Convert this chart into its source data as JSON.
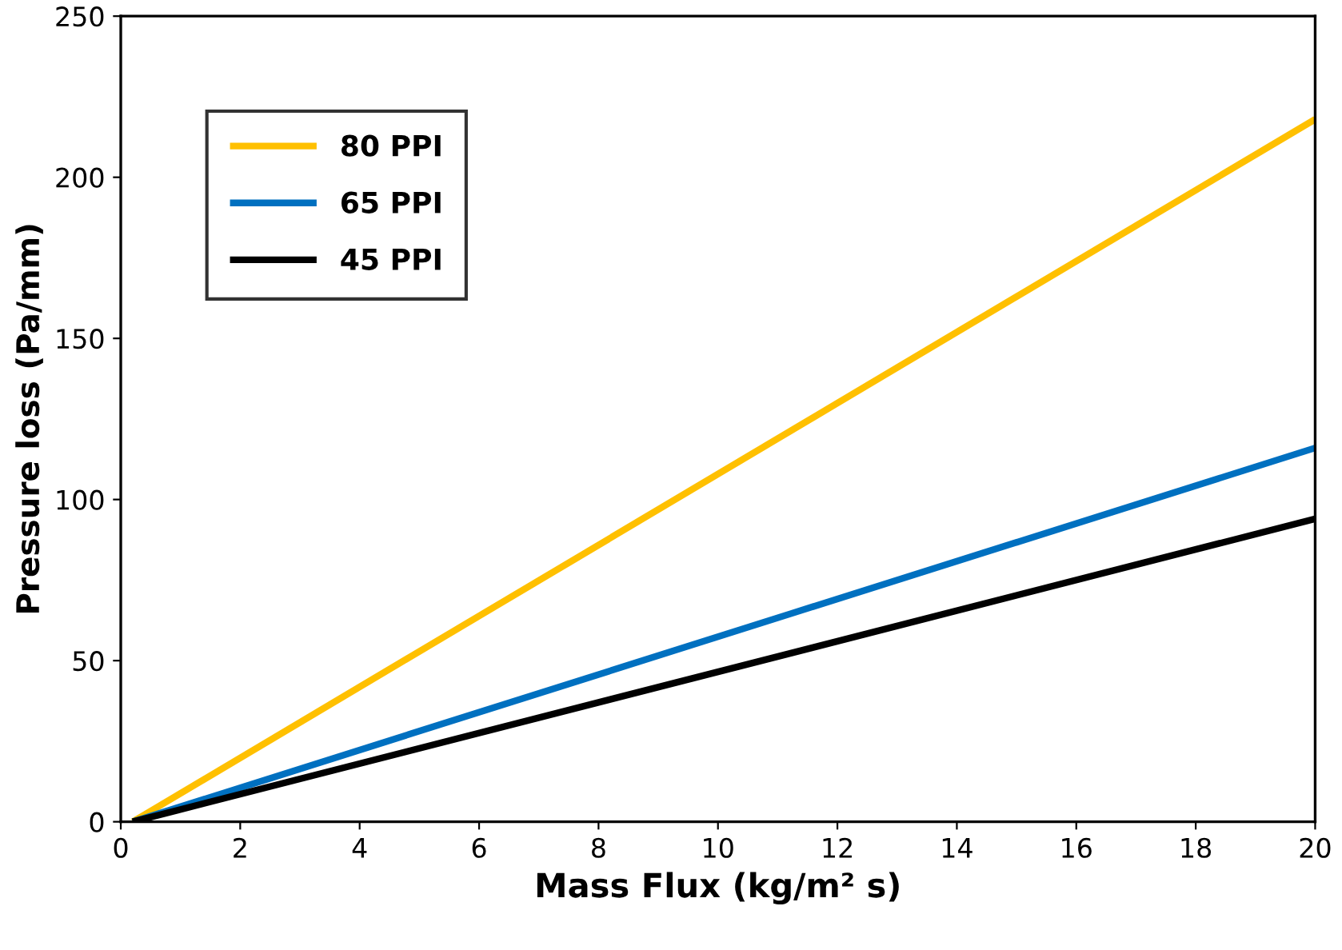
{
  "chart_data": {
    "type": "line",
    "xlabel": "Mass Flux (kg/m² s)",
    "ylabel": "Pressure loss (Pa/mm)",
    "xlim": [
      0,
      20
    ],
    "xticks": [
      0,
      2,
      4,
      6,
      8,
      10,
      12,
      14,
      16,
      18,
      20
    ],
    "ylim": [
      0,
      250
    ],
    "yticks": [
      0,
      50,
      100,
      150,
      200,
      250
    ],
    "grid": false,
    "legend": "top left",
    "line_style": "solid",
    "marker": "none",
    "x": [
      0.2,
      20
    ],
    "series": [
      {
        "name": "80 PPI",
        "color": "#ffc000",
        "values": [
          0,
          218
        ]
      },
      {
        "name": "65 PPI",
        "color": "#0070c0",
        "values": [
          0,
          116
        ]
      },
      {
        "name": "45 PPI",
        "color": "#000000",
        "values": [
          0,
          94
        ]
      }
    ]
  }
}
